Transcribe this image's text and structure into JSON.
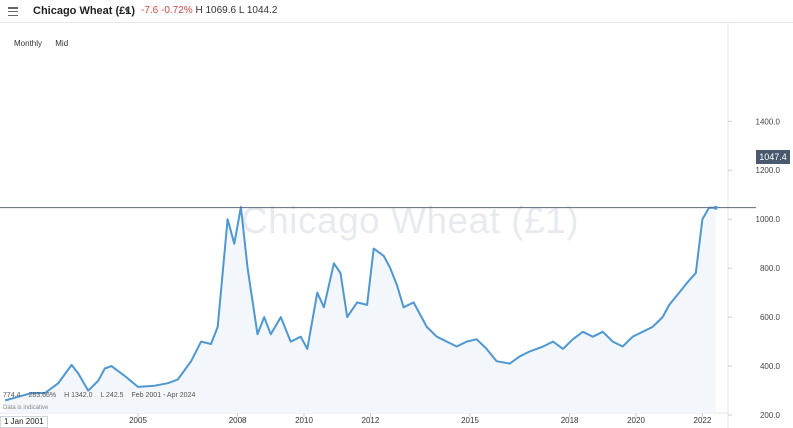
{
  "header": {
    "title": "Chicago Wheat (£1)",
    "change": "-7.6",
    "change_pct": "-0.72%",
    "high": "H 1069.6",
    "low": "L 1044.2"
  },
  "controls": {
    "interval": "Monthly",
    "price_type": "Mid"
  },
  "watermark": "Chicago Wheat (£1)",
  "last_price": "1047.4",
  "stats": {
    "change": "774.4",
    "change_pct": "283.66%",
    "high": "H 1342.0",
    "low": "L 242.5",
    "range": "Feb 2001 - Apr 2024"
  },
  "note": "Data is indicative",
  "start_date": "1 Jan 2001",
  "colors": {
    "line": "#4f97d1",
    "area": "#f3f7fb",
    "negative": "#d64545"
  },
  "chart_data": {
    "type": "area",
    "ylim": [
      0,
      1500
    ],
    "y_ticks": [
      "200.0",
      "400.0",
      "600.0",
      "800.0",
      "1000.0",
      "1200.0",
      "1400.0"
    ],
    "x_ticks": [
      "2005",
      "2008",
      "2010",
      "2012",
      "2015",
      "2018",
      "2020",
      "2022"
    ],
    "reference_line": 1047.4,
    "series": [
      {
        "x": [
          2001.0,
          2001.4,
          2001.8,
          2002.2,
          2002.6,
          2003.0,
          2003.2,
          2003.5,
          2003.8,
          2004.0,
          2004.2,
          2004.6,
          2005.0,
          2005.5,
          2005.9,
          2006.2,
          2006.6,
          2006.9,
          2007.2,
          2007.4,
          2007.7,
          2007.9,
          2008.1,
          2008.3,
          2008.6,
          2008.8,
          2009.0,
          2009.3,
          2009.6,
          2009.9,
          2010.1,
          2010.4,
          2010.6,
          2010.9,
          2011.1,
          2011.3,
          2011.6,
          2011.9,
          2012.1,
          2012.4,
          2012.6,
          2012.8,
          2013.0,
          2013.3,
          2013.7,
          2014.0,
          2014.3,
          2014.6,
          2014.9,
          2015.2,
          2015.5,
          2015.8,
          2016.2,
          2016.5,
          2016.8,
          2017.2,
          2017.5,
          2017.8,
          2018.1,
          2018.4,
          2018.7,
          2019.0,
          2019.3,
          2019.6,
          2019.9,
          2020.2,
          2020.5,
          2020.8,
          2021.0,
          2021.3,
          2021.6,
          2021.8,
          2022.0,
          2022.2,
          2022.4
        ],
        "y": [
          260,
          275,
          290,
          290,
          330,
          405,
          370,
          300,
          340,
          390,
          400,
          360,
          315,
          320,
          330,
          345,
          420,
          500,
          490,
          560,
          1000,
          900,
          1050,
          800,
          530,
          600,
          530,
          600,
          500,
          520,
          470,
          700,
          640,
          820,
          780,
          600,
          660,
          650,
          880,
          850,
          800,
          730,
          640,
          660,
          560,
          520,
          500,
          480,
          500,
          510,
          470,
          420,
          410,
          440,
          460,
          480,
          500,
          470,
          510,
          540,
          520,
          540,
          500,
          480,
          520,
          540,
          560,
          600,
          650,
          700,
          750,
          780,
          1000,
          1047,
          1047
        ]
      }
    ]
  }
}
